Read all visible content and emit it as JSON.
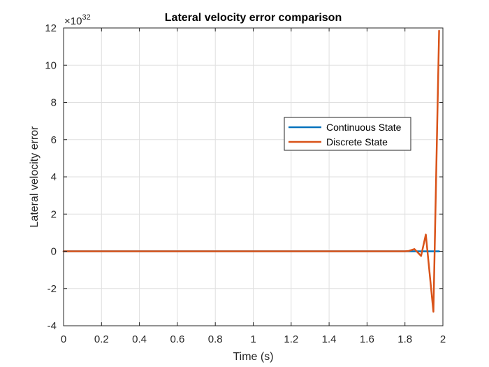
{
  "chart_data": {
    "type": "line",
    "title": "Lateral velocity error comparison",
    "xlabel": "Time (s)",
    "ylabel": "Lateral velocity error",
    "y_exponent_label": "×10",
    "y_exponent_power": "32",
    "y_scale": 1e+32,
    "xlim": [
      0,
      2
    ],
    "ylim": [
      -4,
      12
    ],
    "x_ticks": [
      0,
      0.2,
      0.4,
      0.6,
      0.8,
      1.0,
      1.2,
      1.4,
      1.6,
      1.8,
      2.0
    ],
    "x_tick_labels": [
      "0",
      "0.2",
      "0.4",
      "0.6",
      "0.8",
      "1",
      "1.2",
      "1.4",
      "1.6",
      "1.8",
      "2"
    ],
    "y_ticks": [
      -4,
      -2,
      0,
      2,
      4,
      6,
      8,
      10,
      12
    ],
    "y_tick_labels": [
      "-4",
      "-2",
      "0",
      "2",
      "4",
      "6",
      "8",
      "10",
      "12"
    ],
    "grid": true,
    "legend_position": "center-right",
    "series": [
      {
        "name": "Continuous State",
        "color": "#0072BD",
        "x": [
          0,
          1.8,
          1.85,
          1.9,
          1.95,
          1.98
        ],
        "y": [
          0,
          0,
          0,
          0,
          0,
          0
        ]
      },
      {
        "name": "Discrete State",
        "color": "#D95319",
        "x": [
          0,
          1.8,
          1.82,
          1.85,
          1.885,
          1.91,
          1.95,
          1.98
        ],
        "y": [
          0,
          0,
          0.02,
          0.12,
          -0.25,
          0.9,
          -3.25,
          11.85
        ]
      }
    ]
  }
}
